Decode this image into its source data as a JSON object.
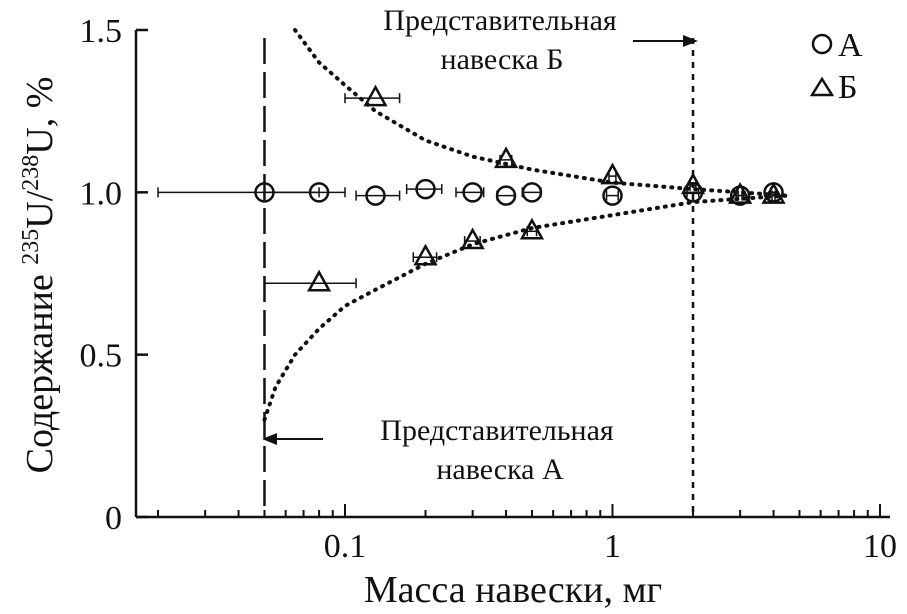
{
  "chart_data": {
    "type": "scatter",
    "xlabel": "Масса навески, мг",
    "ylabel_parts": {
      "prefix": "Содержание ",
      "sup1": "235",
      "mid": "U/",
      "sup2": "238",
      "suffix": "U, %"
    },
    "x_scale": "log",
    "xlim": [
      0.02,
      10
    ],
    "ylim": [
      0,
      1.5
    ],
    "x_ticks": [
      0.1,
      1,
      10
    ],
    "x_tick_labels": [
      "0.1",
      "1",
      "10"
    ],
    "y_ticks": [
      0,
      0.5,
      1.0,
      1.5
    ],
    "y_tick_labels": [
      "0",
      "0.5",
      "1.0",
      "1.5"
    ],
    "grid": false,
    "legend_position": "top-right",
    "series": [
      {
        "name": "А",
        "marker": "circle",
        "points": [
          {
            "x": 0.05,
            "y": 1.0,
            "xerr": [
              0.02,
              0.08
            ]
          },
          {
            "x": 0.08,
            "y": 1.0,
            "xerr": [
              0.05,
              0.1
            ]
          },
          {
            "x": 0.13,
            "y": 0.99,
            "xerr": [
              0.11,
              0.16
            ]
          },
          {
            "x": 0.2,
            "y": 1.01,
            "xerr": [
              0.17,
              0.23
            ]
          },
          {
            "x": 0.3,
            "y": 1.0,
            "xerr": [
              0.26,
              0.33
            ]
          },
          {
            "x": 0.4,
            "y": 0.99,
            "xerr": [
              0.37,
              0.43
            ]
          },
          {
            "x": 0.5,
            "y": 1.0,
            "xerr": [
              0.46,
              0.54
            ]
          },
          {
            "x": 1.0,
            "y": 0.99,
            "xerr": [
              0.95,
              1.05
            ]
          },
          {
            "x": 2.0,
            "y": 1.0,
            "xerr": [
              1.9,
              2.1
            ]
          },
          {
            "x": 3.0,
            "y": 0.99,
            "xerr": [
              2.9,
              3.1
            ]
          },
          {
            "x": 4.0,
            "y": 1.0,
            "xerr": [
              3.9,
              4.1
            ]
          }
        ]
      },
      {
        "name": "Б",
        "marker": "triangle",
        "points": [
          {
            "x": 0.08,
            "y": 0.72,
            "xerr": [
              0.05,
              0.11
            ]
          },
          {
            "x": 0.13,
            "y": 1.29,
            "xerr": [
              0.1,
              0.16
            ]
          },
          {
            "x": 0.2,
            "y": 0.8,
            "xerr": [
              0.18,
              0.22
            ]
          },
          {
            "x": 0.3,
            "y": 0.85,
            "xerr": [
              0.28,
              0.32
            ]
          },
          {
            "x": 0.4,
            "y": 1.1,
            "xerr": [
              0.38,
              0.42
            ]
          },
          {
            "x": 0.5,
            "y": 0.88,
            "xerr": [
              0.48,
              0.52
            ]
          },
          {
            "x": 1.0,
            "y": 1.05,
            "xerr": [
              0.97,
              1.03
            ]
          },
          {
            "x": 2.0,
            "y": 1.02,
            "xerr": [
              1.95,
              2.05
            ]
          },
          {
            "x": 3.0,
            "y": 0.99,
            "xerr": [
              2.95,
              3.05
            ]
          },
          {
            "x": 4.0,
            "y": 0.99,
            "xerr": [
              3.95,
              4.05
            ]
          }
        ]
      }
    ],
    "envelope_curves": {
      "upper": [
        [
          0.065,
          1.5
        ],
        [
          0.08,
          1.4
        ],
        [
          0.1,
          1.33
        ],
        [
          0.13,
          1.25
        ],
        [
          0.2,
          1.16
        ],
        [
          0.3,
          1.11
        ],
        [
          0.5,
          1.07
        ],
        [
          1.0,
          1.03
        ],
        [
          2.0,
          1.01
        ],
        [
          3.0,
          1.0
        ],
        [
          4.5,
          0.99
        ]
      ],
      "lower": [
        [
          0.05,
          0.3
        ],
        [
          0.055,
          0.4
        ],
        [
          0.065,
          0.5
        ],
        [
          0.08,
          0.58
        ],
        [
          0.1,
          0.65
        ],
        [
          0.13,
          0.7
        ],
        [
          0.2,
          0.78
        ],
        [
          0.3,
          0.84
        ],
        [
          0.5,
          0.89
        ],
        [
          1.0,
          0.93
        ],
        [
          2.0,
          0.97
        ],
        [
          3.0,
          0.98
        ],
        [
          4.5,
          0.99
        ]
      ]
    },
    "reference_lines": [
      {
        "x": 0.05,
        "style": "long-dash",
        "label_line1": "Представительная",
        "label_line2": "навеска А"
      },
      {
        "x": 2.0,
        "style": "short-dash",
        "label_line1": "Представительная",
        "label_line2": "навеска Б"
      }
    ]
  }
}
